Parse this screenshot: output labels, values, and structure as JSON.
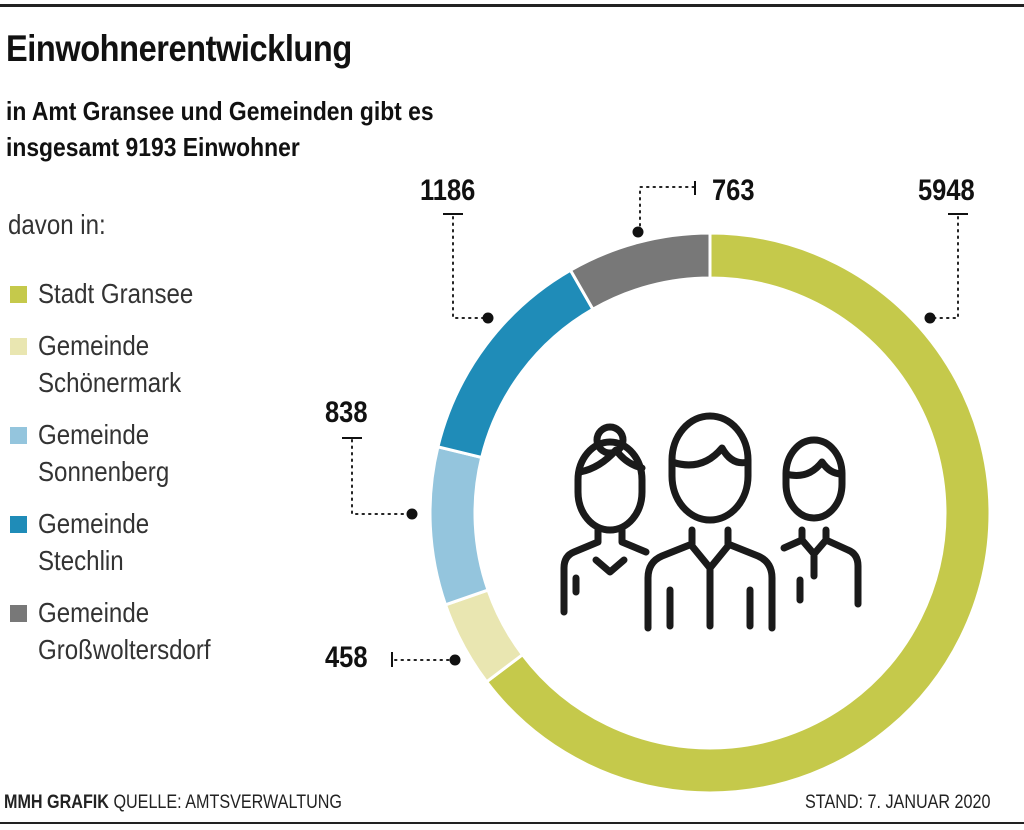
{
  "title": "Einwohnerentwicklung",
  "subtitle_line1": "in Amt Gransee und Gemeinden gibt es",
  "subtitle_line2": "insgesamt 9193 Einwohner",
  "legend_intro": "davon in:",
  "footer": {
    "brand": "MMH GRAFIK",
    "source": "QUELLE:  AMTSVERWALTUNG",
    "date": "STAND: 7. JANUAR 2020"
  },
  "people_icon": "three-people-icon",
  "chart_data": {
    "type": "pie",
    "donut": true,
    "total": 9193,
    "start": "top, clockwise",
    "slices": [
      {
        "name_line1": "Stadt Gransee",
        "name_line2": "",
        "value": 5948,
        "label": "5948",
        "color": "#c5c94b"
      },
      {
        "name_line1": "Gemeinde",
        "name_line2": "Schönermark",
        "value": 458,
        "label": "458",
        "color": "#e9e6b1"
      },
      {
        "name_line1": "Gemeinde",
        "name_line2": "Sonnenberg",
        "value": 838,
        "label": "838",
        "color": "#94c5dd"
      },
      {
        "name_line1": "Gemeinde",
        "name_line2": "Stechlin",
        "value": 1186,
        "label": "1186",
        "color": "#1f8cb8"
      },
      {
        "name_line1": "Gemeinde",
        "name_line2": "Großwoltersdorf",
        "value": 763,
        "label": "763",
        "color": "#787878"
      }
    ]
  }
}
